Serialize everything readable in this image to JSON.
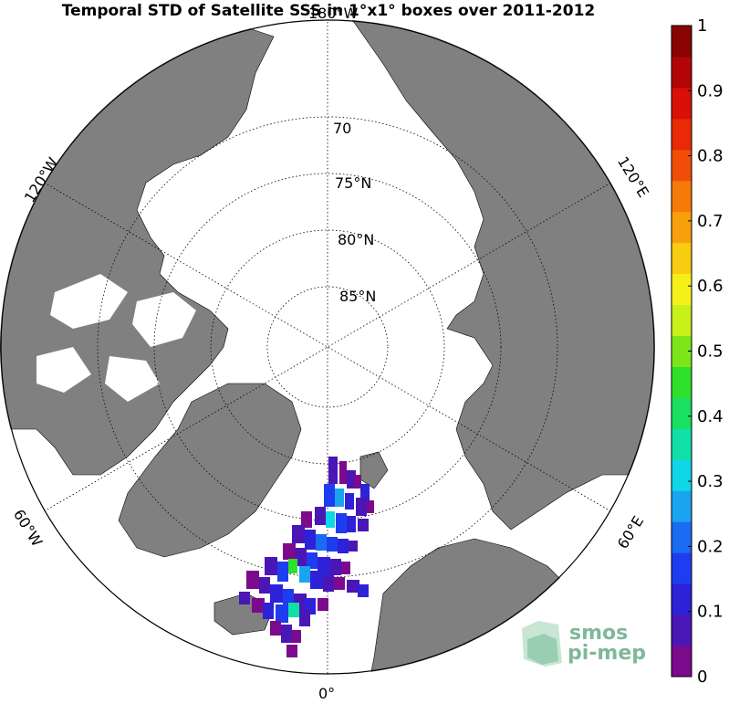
{
  "title": "Temporal STD of Satellite SSS in 1°x1° boxes over 2011-2012",
  "longitude_labels": {
    "w180": "180°W",
    "w120": "120°W",
    "w60": "60°W",
    "zero": "0°",
    "e60": "60°E",
    "e120": "120°E"
  },
  "latitude_labels": {
    "lat70": "70",
    "lat75": "75°N",
    "lat80": "80°N",
    "lat85": "85°N"
  },
  "colorbar": {
    "min": 0,
    "max": 1,
    "ticks": [
      "0",
      "0.1",
      "0.2",
      "0.3",
      "0.4",
      "0.5",
      "0.6",
      "0.7",
      "0.8",
      "0.9",
      "1"
    ],
    "colors": [
      "#7b0a8c",
      "#4b16b6",
      "#2d22d8",
      "#1e3cf0",
      "#1a6cf2",
      "#1aa4f0",
      "#0fd6e8",
      "#10e0a8",
      "#19e060",
      "#2ee02a",
      "#7ce61a",
      "#c8f01a",
      "#f6f01a",
      "#f8cc10",
      "#f8a00c",
      "#f67a0a",
      "#f04e08",
      "#e82a06",
      "#d81006",
      "#b20606",
      "#8a0404"
    ]
  },
  "logo": {
    "line1": "smos",
    "line2": "pi-mep"
  },
  "colors": {
    "land": "#808080",
    "ocean": "#ffffff",
    "grid": "#000000"
  }
}
